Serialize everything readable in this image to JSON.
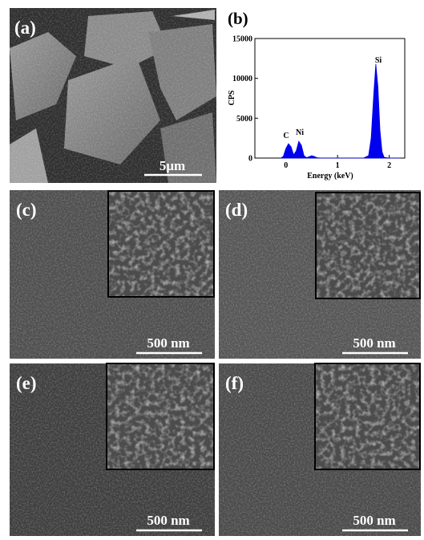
{
  "panels": [
    {
      "label": "(a)",
      "scale_bar": "5μm"
    },
    {
      "label": "(b)"
    },
    {
      "label": "(c)",
      "scale_bar": "500 nm"
    },
    {
      "label": "(d)",
      "scale_bar": "500 nm"
    },
    {
      "label": "(e)",
      "scale_bar": "500 nm"
    },
    {
      "label": "(f)",
      "scale_bar": "500 nm"
    }
  ],
  "chart_data": {
    "type": "area",
    "color": "#0000ee",
    "x_label": "Energy (keV)",
    "y_label": "CPS",
    "annotations": [
      "C",
      "Ni",
      "Si"
    ],
    "x": [
      -0.1,
      -0.05,
      0,
      0.05,
      0.1,
      0.15,
      0.2,
      0.25,
      0.3,
      0.35,
      0.4,
      0.5,
      0.55,
      0.6,
      0.7,
      1.0,
      1.5,
      1.6,
      1.65,
      1.7,
      1.74,
      1.78,
      1.82,
      1.86,
      1.9,
      2.0,
      2.2
    ],
    "values": [
      0,
      200,
      1200,
      1800,
      1400,
      400,
      900,
      2100,
      1600,
      300,
      50,
      300,
      200,
      50,
      0,
      0,
      0,
      300,
      2500,
      8000,
      11800,
      9000,
      3500,
      800,
      100,
      0,
      0
    ],
    "xlim": [
      -0.6,
      2.3
    ],
    "ylim": [
      0,
      15000
    ],
    "xticks": [
      0,
      1,
      2
    ],
    "yticks": [
      0,
      5000,
      10000,
      15000
    ]
  }
}
